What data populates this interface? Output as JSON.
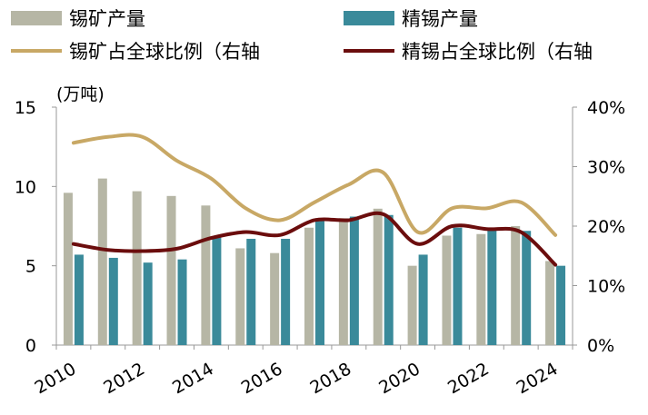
{
  "chart_data": {
    "type": "bar+line",
    "ylabel_left": "(万吨)",
    "x": [
      "2010",
      "2011",
      "2012",
      "2013",
      "2014",
      "2015",
      "2016",
      "2017",
      "2018",
      "2019",
      "2020",
      "2021",
      "2022",
      "2023",
      "2024"
    ],
    "xtick_labels": [
      "2010",
      "2012",
      "2014",
      "2016",
      "2018",
      "2020",
      "2022",
      "2024"
    ],
    "ylim_left": [
      0,
      15
    ],
    "yticks_left": [
      "0",
      "5",
      "10",
      "15"
    ],
    "ylim_right": [
      0,
      40
    ],
    "yticks_right": [
      "0%",
      "10%",
      "20%",
      "30%",
      "40%"
    ],
    "legend": [
      {
        "name": "锡矿产量",
        "kind": "bar",
        "color": "#b6b6a5"
      },
      {
        "name": "精锡产量",
        "kind": "bar",
        "color": "#3a8a9a"
      },
      {
        "name": "锡矿占全球比例（右轴",
        "kind": "line",
        "color": "#c8a865"
      },
      {
        "name": "精锡占全球比例（右轴",
        "kind": "line",
        "color": "#6b0d0d"
      }
    ],
    "series": [
      {
        "name": "锡矿产量",
        "axis": "left",
        "type": "bar",
        "values": [
          9.6,
          10.5,
          9.7,
          9.4,
          8.8,
          6.1,
          5.8,
          7.4,
          8.0,
          8.6,
          5.0,
          6.9,
          7.0,
          7.5,
          5.3
        ]
      },
      {
        "name": "精锡产量",
        "axis": "left",
        "type": "bar",
        "values": [
          5.7,
          5.5,
          5.2,
          5.4,
          6.8,
          6.7,
          6.7,
          8.0,
          8.1,
          8.2,
          5.7,
          7.4,
          7.4,
          7.2,
          5.0
        ]
      },
      {
        "name": "锡矿占全球比例（右轴",
        "axis": "right",
        "type": "line",
        "values": [
          34,
          35,
          35,
          31,
          28,
          23,
          21,
          24,
          27,
          29,
          19,
          23,
          23,
          24,
          18.5
        ]
      },
      {
        "name": "精锡占全球比例（右轴",
        "axis": "right",
        "type": "line",
        "values": [
          17,
          16,
          15.8,
          16.2,
          18,
          19,
          18.5,
          21,
          21,
          22,
          17,
          20,
          19.5,
          19,
          13.5
        ]
      }
    ]
  }
}
